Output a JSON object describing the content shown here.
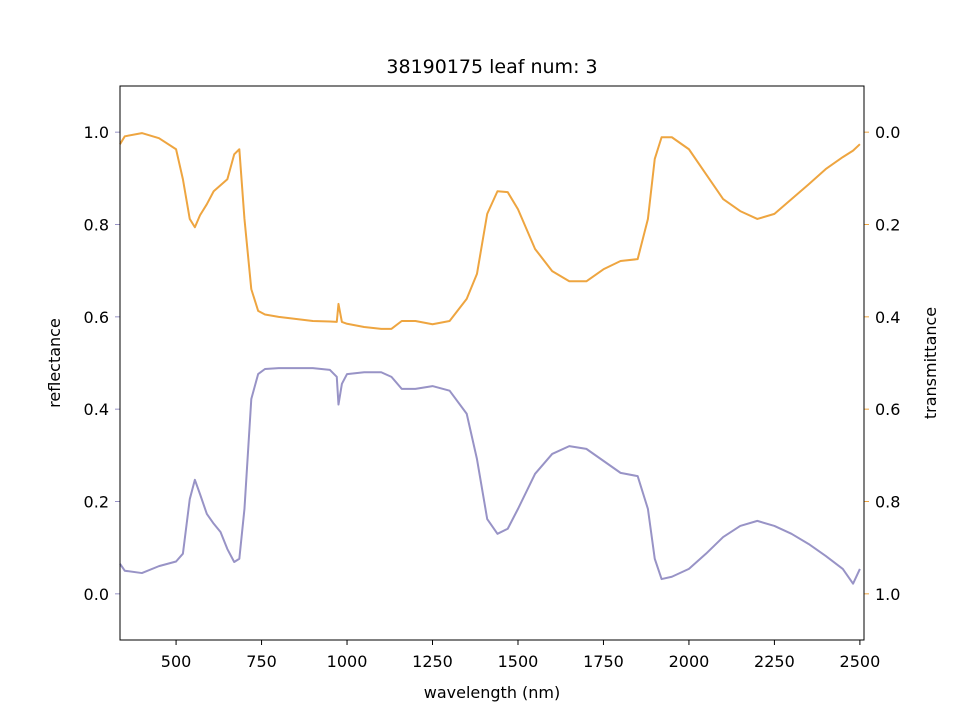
{
  "chart_data": {
    "type": "line",
    "title": "38190175 leaf num: 3",
    "xlabel": "wavelength (nm)",
    "ylabel": "reflectance",
    "y2label": "transmittance",
    "x": [
      336,
      350,
      400,
      450,
      500,
      520,
      540,
      555,
      570,
      590,
      610,
      630,
      650,
      670,
      685,
      700,
      720,
      740,
      760,
      800,
      900,
      950,
      970,
      975,
      985,
      1000,
      1050,
      1100,
      1130,
      1160,
      1200,
      1250,
      1300,
      1350,
      1380,
      1410,
      1440,
      1470,
      1500,
      1550,
      1600,
      1650,
      1700,
      1750,
      1800,
      1850,
      1880,
      1900,
      1920,
      1950,
      2000,
      2050,
      2100,
      2150,
      2200,
      2250,
      2300,
      2350,
      2400,
      2450,
      2480,
      2500
    ],
    "series": [
      {
        "color": "#9893c6",
        "axis": "y",
        "values": [
          0.065,
          0.05,
          0.045,
          0.06,
          0.07,
          0.087,
          0.205,
          0.247,
          0.216,
          0.173,
          0.152,
          0.134,
          0.097,
          0.069,
          0.076,
          0.184,
          0.422,
          0.476,
          0.487,
          0.489,
          0.489,
          0.485,
          0.47,
          0.41,
          0.455,
          0.476,
          0.48,
          0.48,
          0.47,
          0.444,
          0.444,
          0.45,
          0.44,
          0.39,
          0.292,
          0.162,
          0.13,
          0.141,
          0.184,
          0.26,
          0.303,
          0.32,
          0.314,
          0.288,
          0.262,
          0.255,
          0.184,
          0.076,
          0.032,
          0.037,
          0.054,
          0.087,
          0.123,
          0.147,
          0.158,
          0.147,
          0.13,
          0.108,
          0.082,
          0.054,
          0.022,
          0.054
        ]
      },
      {
        "color": "#eea540",
        "axis": "y2",
        "values": [
          0.026,
          0.009,
          0.002,
          0.013,
          0.037,
          0.102,
          0.188,
          0.206,
          0.18,
          0.156,
          0.128,
          0.115,
          0.102,
          0.048,
          0.037,
          0.188,
          0.34,
          0.387,
          0.395,
          0.4,
          0.409,
          0.41,
          0.411,
          0.372,
          0.411,
          0.415,
          0.422,
          0.426,
          0.426,
          0.409,
          0.409,
          0.416,
          0.409,
          0.361,
          0.307,
          0.177,
          0.128,
          0.13,
          0.167,
          0.253,
          0.301,
          0.323,
          0.323,
          0.297,
          0.279,
          0.275,
          0.188,
          0.058,
          0.011,
          0.011,
          0.037,
          0.091,
          0.145,
          0.171,
          0.188,
          0.177,
          0.145,
          0.113,
          0.08,
          0.054,
          0.04,
          0.026
        ]
      }
    ],
    "xlim": [
      336,
      2512
    ],
    "xticks": [
      500,
      750,
      1000,
      1250,
      1500,
      1750,
      2000,
      2250,
      2500
    ],
    "ylim": [
      -0.1,
      1.1
    ],
    "yticks": [
      {
        "value": 0,
        "label": "0.0"
      },
      0.2,
      0.4,
      0.6,
      0.8,
      {
        "value": 1,
        "label": "1.0"
      }
    ],
    "y2lim": [
      1.1,
      -0.1
    ],
    "y2ticks": [
      {
        "value": 0,
        "label": "0.0"
      },
      0.2,
      0.4,
      0.6,
      0.8,
      {
        "value": 1,
        "label": "1.0"
      }
    ]
  }
}
